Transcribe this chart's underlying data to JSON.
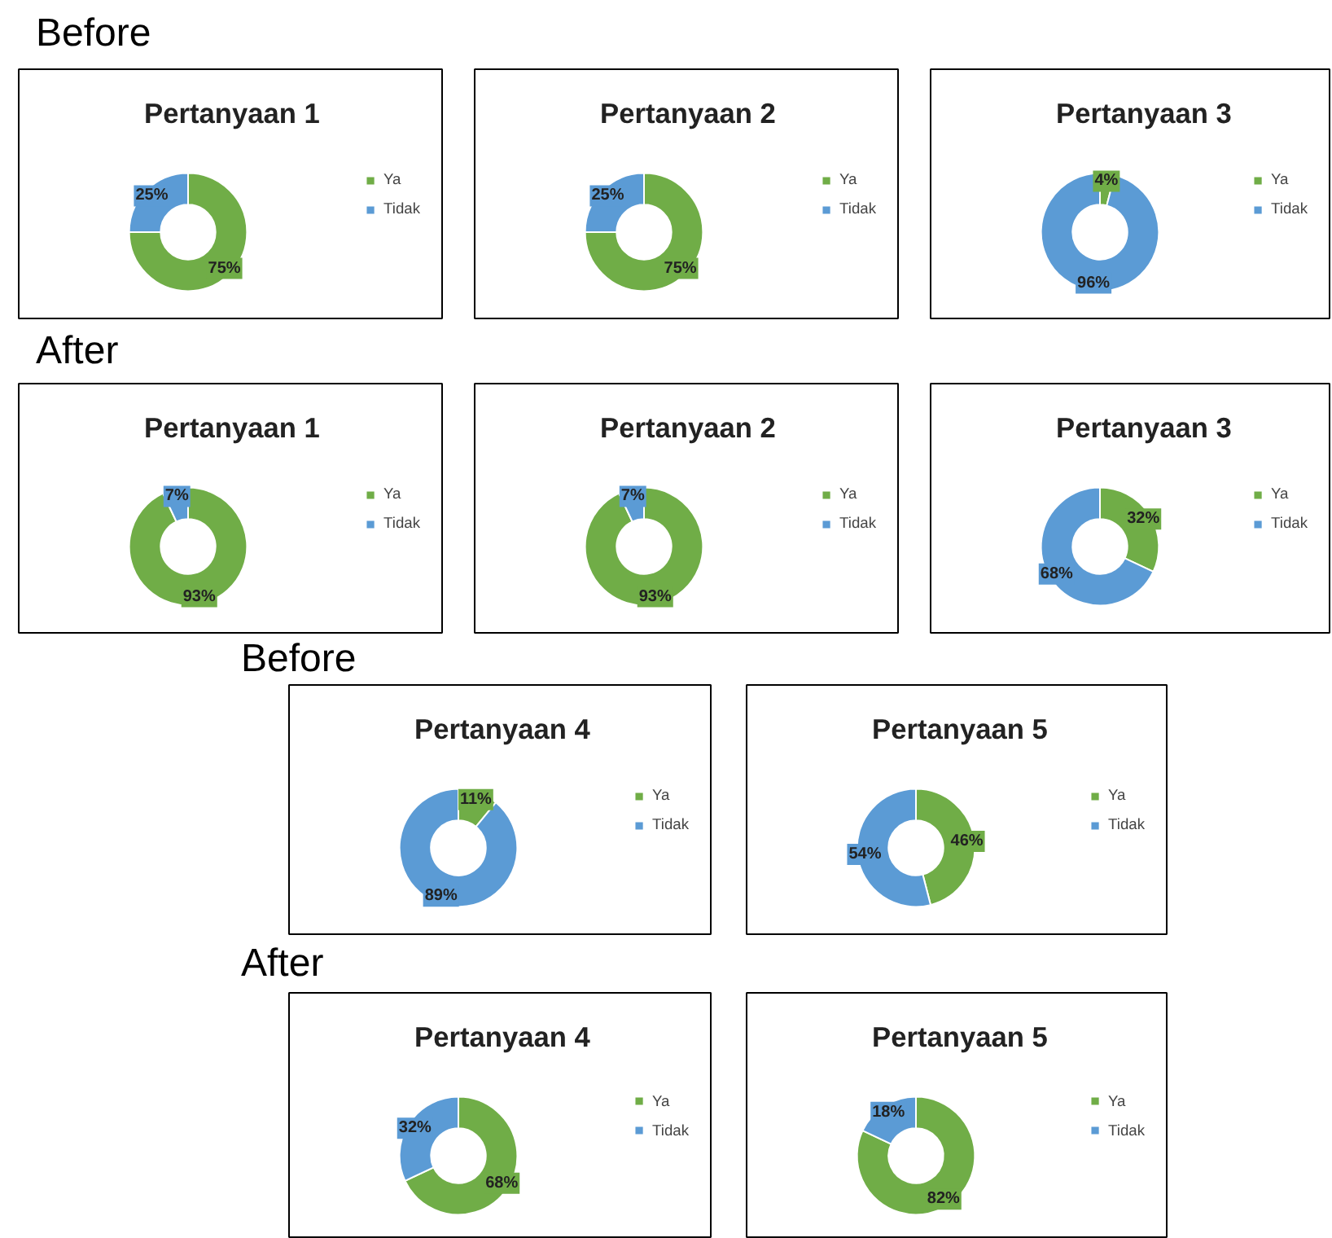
{
  "chart_data": [
    {
      "type": "other",
      "title": "Before"
    },
    {
      "type": "donut",
      "title": "Pertanyaan 1",
      "categories": [
        "Ya",
        "Tidak"
      ],
      "values": [
        75,
        25
      ],
      "value_labels": [
        "75%",
        "25%"
      ],
      "colors": [
        "#70ad47",
        "#5b9bd5"
      ],
      "legend": "right"
    },
    {
      "type": "donut",
      "title": "Pertanyaan 2",
      "categories": [
        "Ya",
        "Tidak"
      ],
      "values": [
        75,
        25
      ],
      "value_labels": [
        "75%",
        "25%"
      ],
      "colors": [
        "#70ad47",
        "#5b9bd5"
      ],
      "legend": "right"
    },
    {
      "type": "donut",
      "title": "Pertanyaan 3",
      "categories": [
        "Ya",
        "Tidak"
      ],
      "values": [
        4,
        96
      ],
      "value_labels": [
        "4%",
        "96%"
      ],
      "colors": [
        "#70ad47",
        "#5b9bd5"
      ],
      "legend": "right"
    },
    {
      "type": "other",
      "title": "After"
    },
    {
      "type": "donut",
      "title": "Pertanyaan 1",
      "categories": [
        "Ya",
        "Tidak"
      ],
      "values": [
        93,
        7
      ],
      "value_labels": [
        "93%",
        "7%"
      ],
      "colors": [
        "#70ad47",
        "#5b9bd5"
      ],
      "legend": "right"
    },
    {
      "type": "donut",
      "title": "Pertanyaan 2",
      "categories": [
        "Ya",
        "Tidak"
      ],
      "values": [
        93,
        7
      ],
      "value_labels": [
        "93%",
        "7%"
      ],
      "colors": [
        "#70ad47",
        "#5b9bd5"
      ],
      "legend": "right"
    },
    {
      "type": "donut",
      "title": "Pertanyaan 3",
      "categories": [
        "Ya",
        "Tidak"
      ],
      "values": [
        32,
        68
      ],
      "value_labels": [
        "32%",
        "68%"
      ],
      "colors": [
        "#70ad47",
        "#5b9bd5"
      ],
      "legend": "right"
    },
    {
      "type": "other",
      "title": "Before"
    },
    {
      "type": "donut",
      "title": "Pertanyaan 4",
      "categories": [
        "Ya",
        "Tidak"
      ],
      "values": [
        11,
        89
      ],
      "value_labels": [
        "11%",
        "89%"
      ],
      "colors": [
        "#70ad47",
        "#5b9bd5"
      ],
      "legend": "right"
    },
    {
      "type": "donut",
      "title": "Pertanyaan 5",
      "categories": [
        "Ya",
        "Tidak"
      ],
      "values": [
        46,
        54
      ],
      "value_labels": [
        "46%",
        "54%"
      ],
      "colors": [
        "#70ad47",
        "#5b9bd5"
      ],
      "legend": "right"
    },
    {
      "type": "other",
      "title": "After"
    },
    {
      "type": "donut",
      "title": "Pertanyaan 4",
      "categories": [
        "Ya",
        "Tidak"
      ],
      "values": [
        68,
        32
      ],
      "value_labels": [
        "68%",
        "32%"
      ],
      "colors": [
        "#70ad47",
        "#5b9bd5"
      ],
      "legend": "right"
    },
    {
      "type": "donut",
      "title": "Pertanyaan 5",
      "categories": [
        "Ya",
        "Tidak"
      ],
      "values": [
        82,
        18
      ],
      "value_labels": [
        "82%",
        "18%"
      ],
      "colors": [
        "#70ad47",
        "#5b9bd5"
      ],
      "legend": "right"
    }
  ]
}
